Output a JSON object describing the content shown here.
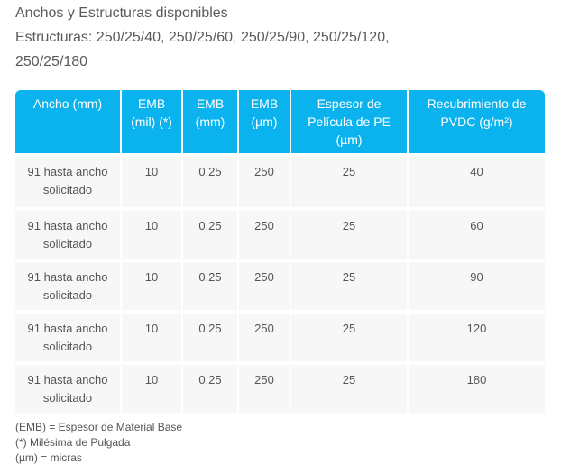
{
  "heading": {
    "title": "Anchos y Estructuras disponibles",
    "structures_line1": "Estructuras: 250/25/40, 250/25/60, 250/25/90, 250/25/120,",
    "structures_line2": "250/25/180"
  },
  "table": {
    "headers": [
      "Ancho (mm)",
      "EMB (mil) (*)",
      "EMB (mm)",
      "EMB (µm)",
      "Espesor de Película de PE (µm)",
      "Recubrimiento de PVDC (g/m²)"
    ],
    "rows": [
      [
        "91 hasta ancho solicitado",
        "10",
        "0.25",
        "250",
        "25",
        "40"
      ],
      [
        "91 hasta ancho solicitado",
        "10",
        "0.25",
        "250",
        "25",
        "60"
      ],
      [
        "91 hasta ancho solicitado",
        "10",
        "0.25",
        "250",
        "25",
        "90"
      ],
      [
        "91 hasta ancho solicitado",
        "10",
        "0.25",
        "250",
        "25",
        "120"
      ],
      [
        "91 hasta ancho solicitado",
        "10",
        "0.25",
        "250",
        "25",
        "180"
      ]
    ],
    "header_color": "#0bb3ee",
    "row_color": "#f7f7f7"
  },
  "notes": [
    "(EMB) = Espesor de Material Base",
    "(*) Milésima de Pulgada",
    "(µm) = micras"
  ]
}
